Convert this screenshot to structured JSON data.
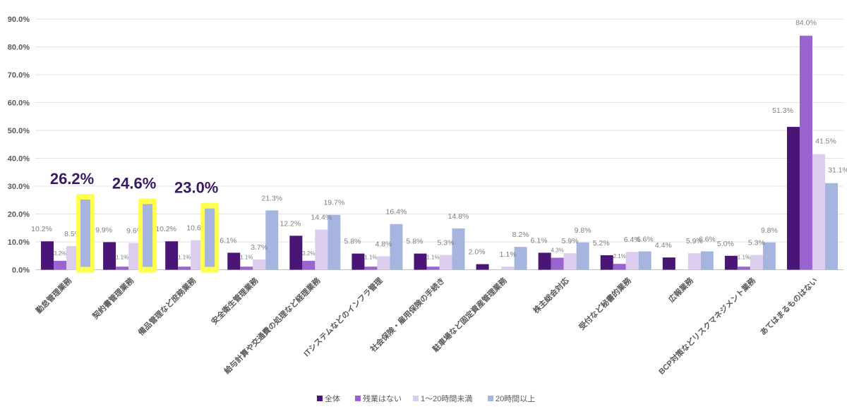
{
  "chart_data": {
    "type": "bar",
    "title": "",
    "xlabel": "",
    "ylabel": "",
    "ylim": [
      0,
      90
    ],
    "yticks": [
      "0.0%",
      "10.0%",
      "20.0%",
      "30.0%",
      "40.0%",
      "50.0%",
      "60.0%",
      "70.0%",
      "80.0%",
      "90.0%"
    ],
    "categories": [
      "勤怠管理業務",
      "契約書管理業務",
      "備品管理など庶務業務",
      "安全衛生管理業務",
      "給与計算や交通費の処理など経理業務",
      "ITシステムなどのインフラ管理",
      "社会保険・雇用保険の手続き",
      "駐車場など固定資産管理業務",
      "株主総会対応",
      "受付など秘書的業務",
      "広報業務",
      "BCP対策などリスクマネジメント業務",
      "あてはまるものはない"
    ],
    "series": [
      {
        "name": "全体",
        "color": "#4b1578",
        "values": [
          10.2,
          9.9,
          10.2,
          6.1,
          12.2,
          5.8,
          5.8,
          2.0,
          6.1,
          5.2,
          4.4,
          5.0,
          51.3
        ],
        "labels": [
          "10.2%",
          "9.9%",
          "10.2%",
          "6.1%",
          "12.2%",
          "5.8%",
          "5.8%",
          "2.0%",
          "6.1%",
          "5.2%",
          "4.4%",
          "5.0%",
          "51.3%"
        ]
      },
      {
        "name": "残業はない",
        "color": "#9b63cf",
        "values": [
          3.2,
          1.1,
          1.1,
          1.1,
          3.2,
          1.1,
          1.1,
          0.0,
          4.3,
          2.1,
          0.0,
          1.1,
          84.0
        ],
        "labels": [
          "3.2%",
          "1.1%",
          "1.1%",
          "1.1%",
          "3.2%",
          "1.1%",
          "1.1%",
          "",
          "4.3%",
          "2.1%",
          "",
          "1.1%",
          "84.0%"
        ]
      },
      {
        "name": "1～20時間未満",
        "color": "#dccdee",
        "values": [
          8.5,
          9.6,
          10.6,
          3.7,
          14.4,
          4.8,
          5.3,
          1.1,
          5.9,
          6.4,
          5.9,
          5.3,
          41.5
        ],
        "labels": [
          "8.5%",
          "9.6%",
          "10.6%",
          "3.7%",
          "14.4%",
          "4.8%",
          "5.3%",
          "1.1%",
          "5.9%",
          "6.4%",
          "5.9%",
          "5.3%",
          "41.5%"
        ]
      },
      {
        "name": "20時間以上",
        "color": "#a6b5e0",
        "values": [
          26.2,
          24.6,
          23.0,
          21.3,
          19.7,
          16.4,
          14.8,
          8.2,
          9.8,
          6.6,
          6.6,
          9.8,
          31.1
        ],
        "labels": [
          "",
          "",
          "",
          "21.3%",
          "19.7%",
          "16.4%",
          "14.8%",
          "8.2%",
          "9.8%",
          "6.6%",
          "6.6%",
          "9.8%",
          "31.1%"
        ]
      }
    ],
    "highlights": [
      {
        "category_index": 0,
        "label": "26.2%"
      },
      {
        "category_index": 1,
        "label": "24.6%"
      },
      {
        "category_index": 2,
        "label": "23.0%"
      }
    ],
    "legend": [
      "全体",
      "残業はない",
      "1～20時間未満",
      "20時間以上"
    ],
    "legend_position": "bottom",
    "grid": true
  }
}
